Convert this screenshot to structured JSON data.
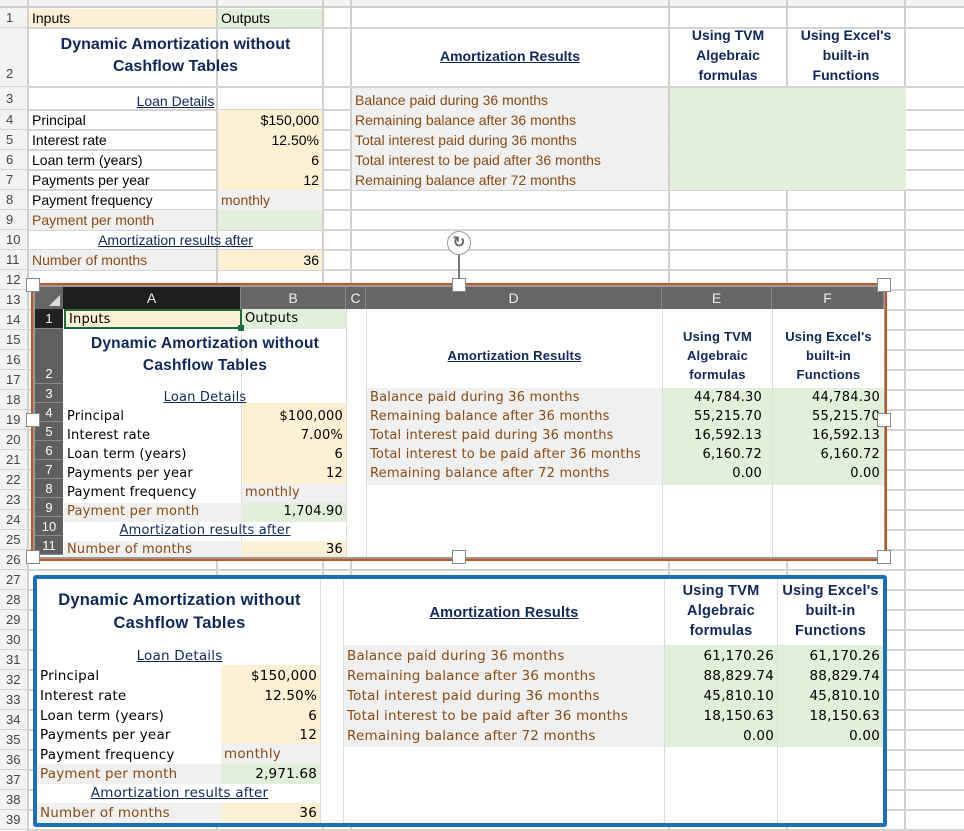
{
  "sheet": {
    "row_numbers": [
      "1",
      "2",
      "3",
      "4",
      "5",
      "6",
      "7",
      "8",
      "9",
      "10",
      "11",
      "12",
      "13",
      "14",
      "15",
      "16",
      "17",
      "18",
      "19",
      "20",
      "21",
      "22",
      "23",
      "24",
      "25",
      "26",
      "27",
      "28",
      "29",
      "30",
      "31",
      "32",
      "33",
      "34",
      "35",
      "36",
      "37",
      "38",
      "39"
    ],
    "inputs_label": "Inputs",
    "outputs_label": "Outputs",
    "title": "Dynamic Amortization without Cashflow Tables",
    "title_line1": "Dynamic Amortization without",
    "title_line2": "Cashflow Tables",
    "loan_details": "Loan Details",
    "principal_label": "Principal",
    "principal": "$150,000",
    "rate_label": "Interest rate",
    "rate": "12.50%",
    "term_label": "Loan term (years)",
    "term": "6",
    "ppy_label": "Payments per year",
    "ppy": "12",
    "freq_label": "Payment frequency",
    "freq": "monthly",
    "ppm_label": "Payment per month",
    "ppm": "",
    "results_after": "Amortization results after",
    "months_label": "Number of months",
    "months": "36",
    "amort_results": "Amortization Results",
    "tvm_header": [
      "Using TVM",
      "Algebraic",
      "formulas"
    ],
    "excel_header": [
      "Using Excel's",
      "built-in",
      "Functions"
    ],
    "result_labels": [
      "Balance paid during 36 months",
      "Remaining balance after 36 months",
      "Total interest paid during 36 months",
      "Total interest to be paid after 36 months",
      "Remaining balance after 72 months"
    ]
  },
  "picture1": {
    "columns": [
      "A",
      "B",
      "C",
      "D",
      "E",
      "F"
    ],
    "row_numbers": [
      "1",
      "2",
      "3",
      "4",
      "5",
      "6",
      "7",
      "8",
      "9",
      "10",
      "11"
    ],
    "inputs_label": "Inputs",
    "outputs_label": "Outputs",
    "title_line1": "Dynamic Amortization without",
    "title_line2": "Cashflow Tables",
    "loan_details": "Loan Details",
    "principal_label": "Principal",
    "principal": "$100,000",
    "rate_label": "Interest rate",
    "rate": "7.00%",
    "term_label": "Loan term (years)",
    "term": "6",
    "ppy_label": "Payments per year",
    "ppy": "12",
    "freq_label": "Payment frequency",
    "freq": "monthly",
    "ppm_label": "Payment per month",
    "ppm": "1,704.90",
    "results_after": "Amortization results after",
    "months_label": "Number of months",
    "months": "36",
    "amort_results": "Amortization Results",
    "tvm_header": [
      "Using TVM",
      "Algebraic",
      "formulas"
    ],
    "excel_header": [
      "Using Excel's",
      "built-in",
      "Functions"
    ],
    "result_labels": [
      "Balance paid during 36 months",
      "Remaining balance after 36 months",
      "Total interest paid during 36 months",
      "Total interest to be paid after 36 months",
      "Remaining balance after 72 months"
    ],
    "tvm_values": [
      "44,784.30",
      "55,215.70",
      "16,592.13",
      "6,160.72",
      "0.00"
    ],
    "excel_values": [
      "44,784.30",
      "55,215.70",
      "16,592.13",
      "6,160.72",
      "0.00"
    ]
  },
  "picture2": {
    "title_line1": "Dynamic Amortization without",
    "title_line2": "Cashflow Tables",
    "loan_details": "Loan Details",
    "principal_label": "Principal",
    "principal": "$150,000",
    "rate_label": "Interest rate",
    "rate": "12.50%",
    "term_label": "Loan term (years)",
    "term": "6",
    "ppy_label": "Payments per year",
    "ppy": "12",
    "freq_label": "Payment frequency",
    "freq": "monthly",
    "ppm_label": "Payment per month",
    "ppm": "2,971.68",
    "results_after": "Amortization results after",
    "months_label": "Number of months",
    "months": "36",
    "amort_results": "Amortization Results",
    "tvm_header": [
      "Using TVM",
      "Algebraic",
      "formulas"
    ],
    "excel_header": [
      "Using Excel's",
      "built-in",
      "Functions"
    ],
    "result_labels": [
      "Balance paid during 36 months",
      "Remaining balance after 36 months",
      "Total interest paid during 36 months",
      "Total interest to be paid after 36 months",
      "Remaining balance after 72 months"
    ],
    "tvm_values": [
      "61,170.26",
      "88,829.74",
      "45,810.10",
      "18,150.63",
      "0.00"
    ],
    "excel_values": [
      "61,170.26",
      "88,829.74",
      "45,810.10",
      "18,150.63",
      "0.00"
    ]
  },
  "colors": {
    "input_fill": "#fdf0d5",
    "output_fill": "#e2efda",
    "label_fill": "#f0f0f0",
    "label_text": "#8a4a14",
    "heading_text": "#10275c",
    "selection_border": "#c0561c",
    "picture_border": "#1a6fb5"
  },
  "icons": {
    "rotate_handle": "rotate-icon"
  }
}
